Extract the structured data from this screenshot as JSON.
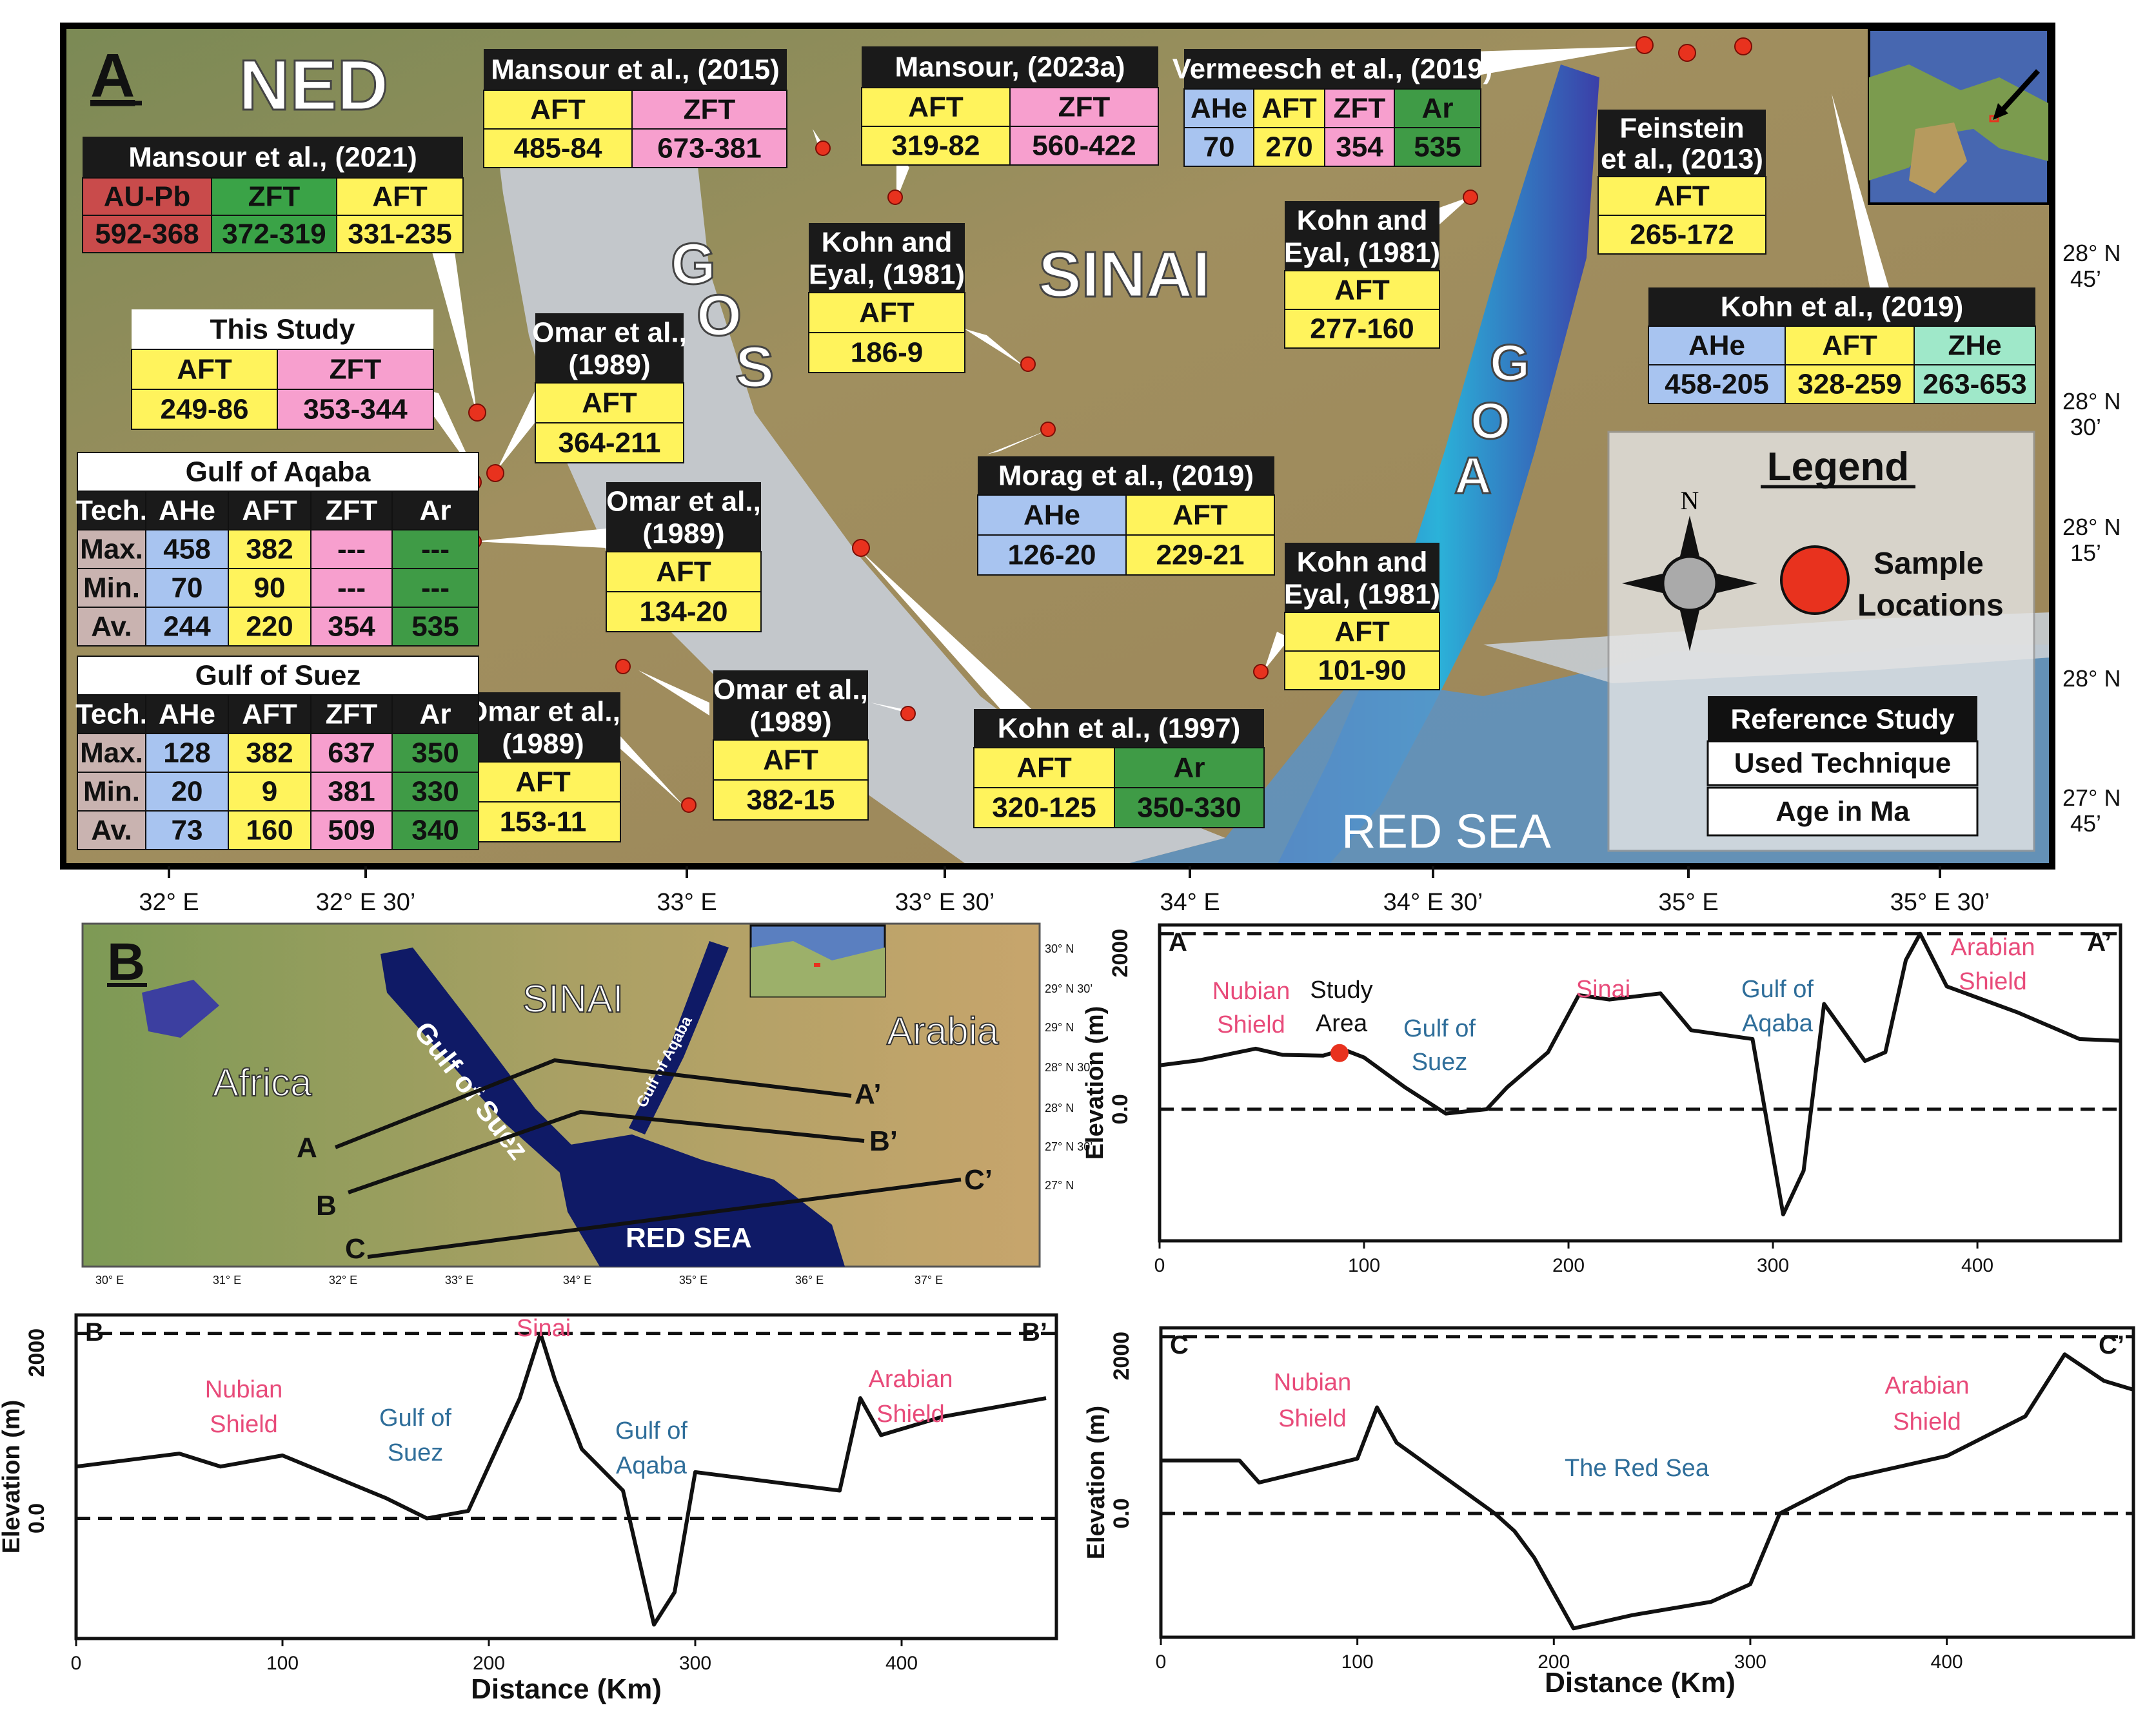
{
  "colors": {
    "aft": "#fff35c",
    "zft": "#f79fce",
    "ahe": "#a8c4f0",
    "ar": "#3f9b46",
    "aupb": "#c94b4b",
    "zft_green": "#3aa347",
    "zhe": "#9fe8c9",
    "title": "#1a1a1a",
    "tech": "#c9b3b0",
    "sea": "#c4c8cc",
    "land": "#8f8a5a",
    "deep": "#0c1a66",
    "pink": "#e84b7a",
    "blue": "#2f6e9a",
    "sample": "#e8321e"
  },
  "panelA": {
    "letter": "A",
    "region_labels": {
      "ned": "NED",
      "sinai": "SINAI",
      "gos": [
        "G",
        "O",
        "S"
      ],
      "goa": [
        "G",
        "O",
        "A"
      ],
      "red_sea": "RED SEA"
    },
    "lon_ticks": [
      "32° E",
      "32° E 30’",
      "33° E",
      "33° E 30’",
      "34° E",
      "34° E 30’",
      "35° E",
      "35° E 30’"
    ],
    "lat_ticks": [
      [
        "28° N",
        "45’"
      ],
      [
        "28° N",
        "30’"
      ],
      [
        "28° N",
        "15’"
      ],
      [
        "28° N",
        ""
      ],
      [
        "27° N",
        "45’"
      ]
    ],
    "boxes": [
      {
        "title": "Mansour et al., (2021)",
        "cols": [
          [
            "AU-Pb",
            "592-368",
            "aupb"
          ],
          [
            "ZFT",
            "372-319",
            "zft_green"
          ],
          [
            "AFT",
            "331-235",
            "aft"
          ]
        ]
      },
      {
        "title": "Mansour et al., (2015)",
        "cols": [
          [
            "AFT",
            "485-84",
            "aft"
          ],
          [
            "ZFT",
            "673-381",
            "zft"
          ]
        ]
      },
      {
        "title": "Mansour, (2023a)",
        "cols": [
          [
            "AFT",
            "319-82",
            "aft"
          ],
          [
            "ZFT",
            "560-422",
            "zft"
          ]
        ]
      },
      {
        "title": "Vermeesch et al., (2019)",
        "cols": [
          [
            "AHe",
            "70",
            "ahe"
          ],
          [
            "AFT",
            "270",
            "aft"
          ],
          [
            "ZFT",
            "354",
            "zft"
          ],
          [
            "Ar",
            "535",
            "ar"
          ]
        ]
      },
      {
        "title": "Feinstein et al., (2013)",
        "cols": [
          [
            "AFT",
            "265-172",
            "aft"
          ]
        ]
      },
      {
        "title": "Kohn and Eyal, (1981)",
        "cols": [
          [
            "AFT",
            "186-9",
            "aft"
          ]
        ]
      },
      {
        "title": "Kohn and Eyal, (1981)",
        "cols": [
          [
            "AFT",
            "277-160",
            "aft"
          ]
        ]
      },
      {
        "title": "Kohn et al., (2019)",
        "cols": [
          [
            "AHe",
            "458-205",
            "ahe"
          ],
          [
            "AFT",
            "328-259",
            "aft"
          ],
          [
            "ZHe",
            "263-653",
            "zhe"
          ]
        ]
      },
      {
        "title": "This Study",
        "cols": [
          [
            "AFT",
            "249-86",
            "aft"
          ],
          [
            "ZFT",
            "353-344",
            "zft"
          ]
        ]
      },
      {
        "title": "Omar et al., (1989)",
        "cols": [
          [
            "AFT",
            "364-211",
            "aft"
          ]
        ]
      },
      {
        "title": "Omar et al., (1989)",
        "cols": [
          [
            "AFT",
            "134-20",
            "aft"
          ]
        ]
      },
      {
        "title": "Morag et al., (2019)",
        "cols": [
          [
            "AHe",
            "126-20",
            "ahe"
          ],
          [
            "AFT",
            "229-21",
            "aft"
          ]
        ]
      },
      {
        "title": "Kohn and Eyal, (1981)",
        "cols": [
          [
            "AFT",
            "101-90",
            "aft"
          ]
        ]
      },
      {
        "title": "Omar et al., (1989)",
        "cols": [
          [
            "AFT",
            "382-15",
            "aft"
          ]
        ]
      },
      {
        "title": "Omar et al., (1989)",
        "cols": [
          [
            "AFT",
            "153-11",
            "aft"
          ]
        ]
      },
      {
        "title": "Kohn et al., (1997)",
        "cols": [
          [
            "AFT",
            "320-125",
            "aft"
          ],
          [
            "Ar",
            "350-330",
            "ar"
          ]
        ]
      }
    ],
    "aqaba_table": {
      "title": "Gulf of Aqaba",
      "header": [
        "Tech.",
        "AHe",
        "AFT",
        "ZFT",
        "Ar"
      ],
      "rows": [
        [
          "Max.",
          "458",
          "382",
          "---",
          "---"
        ],
        [
          "Min.",
          "70",
          "90",
          "---",
          "---"
        ],
        [
          "Av.",
          "244",
          "220",
          "354",
          "535"
        ]
      ]
    },
    "suez_table": {
      "title": "Gulf of Suez",
      "header": [
        "Tech.",
        "AHe",
        "AFT",
        "ZFT",
        "Ar"
      ],
      "rows": [
        [
          "Max.",
          "128",
          "382",
          "637",
          "350"
        ],
        [
          "Min.",
          "20",
          "9",
          "381",
          "330"
        ],
        [
          "Av.",
          "73",
          "160",
          "509",
          "340"
        ]
      ]
    },
    "legend": {
      "title": "Legend",
      "north": "N",
      "sample": "Sample",
      "locations": "Locations",
      "ref_study": "Reference Study",
      "technique": "Used Technique",
      "age": "Age in Ma"
    }
  },
  "panelB": {
    "letter": "B",
    "labels": {
      "sinai": "SINAI",
      "arabia": "Arabia",
      "africa": "Africa",
      "gulf_suez": "Gulf of Suez",
      "gulf_aqaba": "Gulf of Aqaba",
      "red_sea": "RED SEA"
    },
    "profile_ends": {
      "a": "A",
      "b": "B",
      "c": "C",
      "a2": "A’",
      "b2": "B’",
      "c2": "C’"
    },
    "lon_ticks": [
      "30° E",
      "31° E",
      "32° E",
      "33° E",
      "34° E",
      "35° E",
      "36° E",
      "37° E"
    ],
    "lat_ticks": [
      "30° N",
      "29° N 30’",
      "29° N",
      "28° N 30’",
      "28° N",
      "27° N 30’",
      "27° N"
    ]
  },
  "profiles": {
    "ylabel": "Elevation (m)",
    "xlabel": "Distance (Km)",
    "y2000": "2000",
    "y0": "0.0",
    "AA": {
      "start": "A",
      "end": "A’",
      "xticks": [
        "0",
        "100",
        "200",
        "300",
        "400"
      ],
      "labels": {
        "nubian": "Nubian",
        "shield": "Shield",
        "study": "Study",
        "area": "Area",
        "gos1": "Gulf of",
        "gos2": "Suez",
        "sinai": "Sinai",
        "goa1": "Gulf of",
        "goa2": "Aqaba",
        "arab1": "Arabian",
        "arab2": "Shield"
      }
    },
    "BB": {
      "start": "B",
      "end": "B’",
      "xticks": [
        "0",
        "100",
        "200",
        "300",
        "400"
      ],
      "labels": {
        "nubian": "Nubian",
        "shield": "Shield",
        "gos1": "Gulf of",
        "gos2": "Suez",
        "sinai": "Sinai",
        "goa1": "Gulf of",
        "goa2": "Aqaba",
        "arab1": "Arabian",
        "arab2": "Shield"
      }
    },
    "CC": {
      "start": "C",
      "end": "C’",
      "xticks": [
        "0",
        "100",
        "200",
        "300",
        "400"
      ],
      "labels": {
        "nubian": "Nubian",
        "shield": "Shield",
        "red": "The Red Sea",
        "arab1": "Arabian",
        "arab2": "Shield"
      }
    }
  },
  "chart_data": [
    {
      "type": "line",
      "title": "",
      "xlabel": "Distance (Km)",
      "ylabel": "Elevation (m)",
      "profile": "A–A’",
      "xlim": [
        0,
        470
      ],
      "ylim": [
        -1500,
        2100
      ],
      "series": [
        {
          "values": [
            [
              0,
              500
            ],
            [
              20,
              560
            ],
            [
              47,
              690
            ],
            [
              60,
              620
            ],
            [
              80,
              610
            ],
            [
              90,
              680
            ],
            [
              100,
              590
            ],
            [
              120,
              250
            ],
            [
              140,
              -50
            ],
            [
              160,
              0
            ],
            [
              170,
              250
            ],
            [
              190,
              650
            ],
            [
              205,
              1300
            ],
            [
              220,
              1250
            ],
            [
              245,
              1320
            ],
            [
              260,
              900
            ],
            [
              290,
              800
            ],
            [
              305,
              -1200
            ],
            [
              315,
              -700
            ],
            [
              325,
              1200
            ],
            [
              345,
              550
            ],
            [
              355,
              650
            ],
            [
              365,
              1700
            ],
            [
              372,
              2000
            ],
            [
              385,
              1400
            ],
            [
              420,
              1100
            ],
            [
              450,
              800
            ],
            [
              470,
              780
            ]
          ]
        }
      ]
    },
    {
      "type": "line",
      "title": "",
      "xlabel": "Distance (Km)",
      "ylabel": "Elevation (m)",
      "profile": "B–B’",
      "xlim": [
        0,
        475
      ],
      "ylim": [
        -1300,
        2200
      ],
      "series": [
        {
          "values": [
            [
              0,
              560
            ],
            [
              50,
              700
            ],
            [
              70,
              560
            ],
            [
              100,
              680
            ],
            [
              150,
              220
            ],
            [
              170,
              0
            ],
            [
              190,
              80
            ],
            [
              215,
              1300
            ],
            [
              225,
              2000
            ],
            [
              232,
              1500
            ],
            [
              245,
              750
            ],
            [
              265,
              300
            ],
            [
              280,
              -1150
            ],
            [
              290,
              -800
            ],
            [
              300,
              500
            ],
            [
              370,
              300
            ],
            [
              380,
              1300
            ],
            [
              390,
              900
            ],
            [
              420,
              1100
            ],
            [
              470,
              1300
            ]
          ]
        }
      ]
    },
    {
      "type": "line",
      "title": "",
      "xlabel": "Distance (Km)",
      "ylabel": "Elevation (m)",
      "profile": "C–C’",
      "xlim": [
        0,
        495
      ],
      "ylim": [
        -1400,
        2100
      ],
      "series": [
        {
          "values": [
            [
              0,
              600
            ],
            [
              40,
              600
            ],
            [
              50,
              350
            ],
            [
              100,
              620
            ],
            [
              110,
              1200
            ],
            [
              120,
              800
            ],
            [
              170,
              0
            ],
            [
              180,
              -200
            ],
            [
              190,
              -500
            ],
            [
              210,
              -1300
            ],
            [
              240,
              -1150
            ],
            [
              280,
              -1000
            ],
            [
              300,
              -800
            ],
            [
              315,
              0
            ],
            [
              350,
              400
            ],
            [
              400,
              650
            ],
            [
              440,
              1100
            ],
            [
              460,
              1800
            ],
            [
              480,
              1500
            ],
            [
              495,
              1400
            ]
          ]
        }
      ]
    }
  ]
}
